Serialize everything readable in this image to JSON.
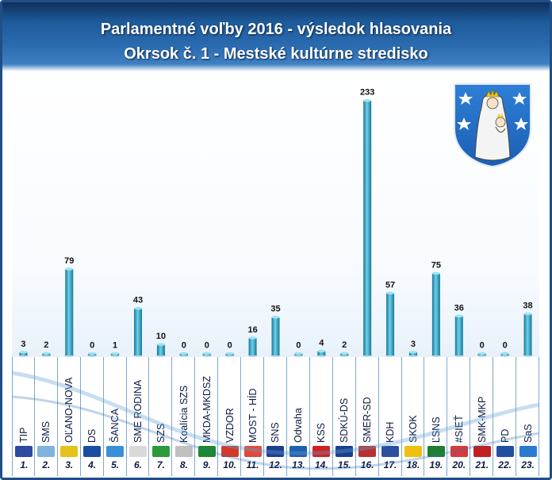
{
  "title_line1": "Parlamentné voľby 2016 - výsledok hlasovania",
  "title_line2": "Okrsok č. 1 - Mestské kultúrne stredisko",
  "colors": {
    "bar": "#3aa9c9",
    "bar_dark": "#157896",
    "header": "#1d5a99",
    "frame": "#1f4f86"
  },
  "crest_icon": "coat-of-arms-madonna",
  "chart_data": {
    "type": "bar",
    "categories": [
      "TIP",
      "SMS",
      "OĽANO-NOVA",
      "DS",
      "ŠANCA",
      "SME RODINA",
      "SZS",
      "Koalícia SZS",
      "MKDA-MKDSZ",
      "VZDOR",
      "MOST - HÍD",
      "SNS",
      "Odvaha",
      "KSS",
      "SDKÚ-DS",
      "SMER-SD",
      "KDH",
      "SKOK",
      "ĽSNS",
      "#SIEŤ",
      "SMK-MKP",
      "PD",
      "SaS"
    ],
    "numbers": [
      "1.",
      "2.",
      "3.",
      "4.",
      "5.",
      "6.",
      "7.",
      "8.",
      "9.",
      "10.",
      "11.",
      "12.",
      "13.",
      "14.",
      "15.",
      "16.",
      "17.",
      "18.",
      "19.",
      "20.",
      "21.",
      "22.",
      "23."
    ],
    "values": [
      3,
      2,
      79,
      0,
      1,
      43,
      10,
      0,
      0,
      0,
      16,
      35,
      0,
      4,
      2,
      233,
      57,
      3,
      75,
      36,
      0,
      0,
      38
    ],
    "data_labels": true,
    "ylim": [
      0,
      240
    ],
    "grid": false,
    "legend": "none"
  },
  "logos": [
    "tip-logo",
    "sms-logo",
    "olano-logo",
    "ds-logo",
    "sanca-logo",
    "sme-rodina-logo",
    "szs-logo",
    "koalicia-szs-logo",
    "mkda-logo",
    "vzdor-logo",
    "most-hid-logo",
    "sns-logo",
    "odvaha-logo",
    "kss-logo",
    "sdku-logo",
    "smer-logo",
    "kdh-logo",
    "skok-logo",
    "lsns-logo",
    "siet-logo",
    "smk-logo",
    "pd-logo",
    "sas-logo"
  ]
}
